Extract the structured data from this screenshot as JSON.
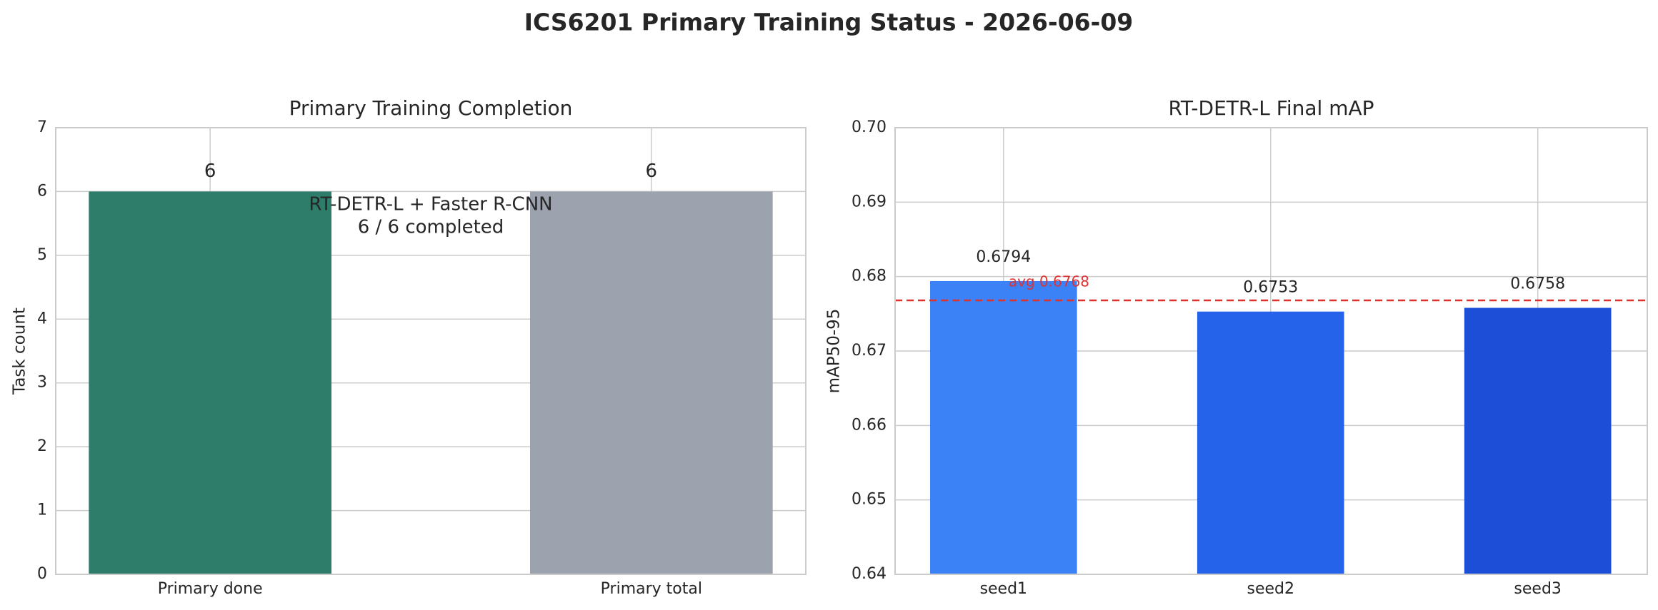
{
  "title": "ICS6201 Primary Training Status - 2026-06-09",
  "chart_data": [
    {
      "type": "bar",
      "title": "Primary Training Completion",
      "ylabel": "Task count",
      "categories": [
        "Primary done",
        "Primary total"
      ],
      "values": [
        6,
        6
      ],
      "colors": [
        "#2e7d6b",
        "#9ca3af"
      ],
      "ylim": [
        0,
        7
      ],
      "yticks": [
        0,
        1,
        2,
        3,
        4,
        5,
        6,
        7
      ],
      "grid": true,
      "annotation": [
        "RT-DETR-L + Faster R-CNN",
        "6 / 6 completed"
      ]
    },
    {
      "type": "bar",
      "title": "RT-DETR-L Final mAP",
      "ylabel": "mAP50-95",
      "categories": [
        "seed1",
        "seed2",
        "seed3"
      ],
      "values": [
        0.6794,
        0.6753,
        0.6758
      ],
      "colors": [
        "#3b82f6",
        "#2563eb",
        "#1d4ed8"
      ],
      "ylim": [
        0.64,
        0.7
      ],
      "yticks": [
        0.64,
        0.65,
        0.66,
        0.67,
        0.68,
        0.69,
        {
          "value": 0.7,
          "label": "0.70"
        }
      ],
      "grid": true,
      "reference_line": {
        "value": 0.6768,
        "label": "avg 0.6768",
        "color": "#e03131"
      }
    }
  ]
}
